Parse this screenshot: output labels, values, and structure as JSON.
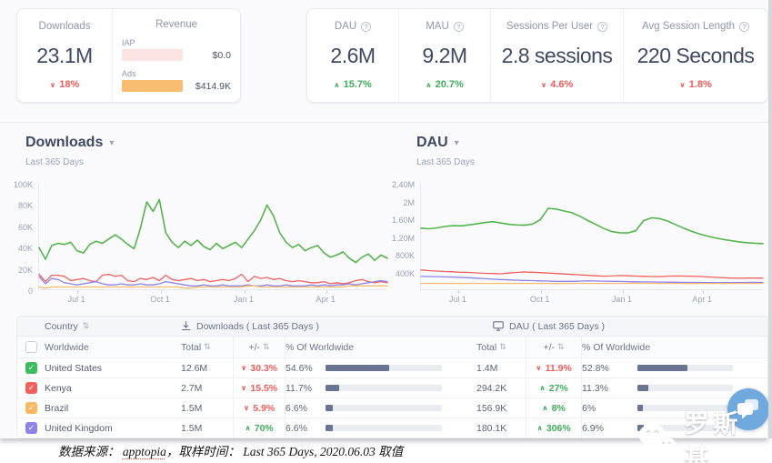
{
  "icons": {
    "help": "?",
    "caret": "▾",
    "sort": "⇅",
    "check": "✓"
  },
  "kpi": {
    "downloads": {
      "label": "Downloads",
      "value": "23.1M",
      "delta": "18%",
      "direction": "down"
    },
    "revenue": {
      "label": "Revenue",
      "iap_label": "IAP",
      "iap_value": "$0.0",
      "ads_label": "Ads",
      "ads_value": "$414.9K"
    },
    "dau": {
      "label": "DAU",
      "value": "2.6M",
      "delta": "15.7%",
      "direction": "up"
    },
    "mau": {
      "label": "MAU",
      "value": "9.2M",
      "delta": "20.7%",
      "direction": "up"
    },
    "sessions_per_user": {
      "label": "Sessions Per User",
      "value": "2.8 sessions",
      "delta": "4.6%",
      "direction": "down"
    },
    "avg_session_length": {
      "label": "Avg Session Length",
      "value": "220 Seconds",
      "delta": "1.8%",
      "direction": "down"
    }
  },
  "chart_data": [
    {
      "type": "line",
      "title": "Downloads",
      "subtitle": "Last 365 Days",
      "values_unit": "thousands of downloads per day",
      "grid": false,
      "legend": "none",
      "ylim": [
        0,
        100
      ],
      "y_ticks": [
        {
          "label": "100K",
          "value": 100
        },
        {
          "label": "80K",
          "value": 80
        },
        {
          "label": "60K",
          "value": 60
        },
        {
          "label": "40K",
          "value": 40
        },
        {
          "label": "20K",
          "value": 20
        },
        {
          "label": "0",
          "value": 0
        }
      ],
      "x_ticks": [
        {
          "label": "Jul 1",
          "pos": 0.11
        },
        {
          "label": "Oct 1",
          "pos": 0.35
        },
        {
          "label": "Jan 1",
          "pos": 0.59
        },
        {
          "label": "Apr 1",
          "pos": 0.825
        }
      ],
      "series": [
        {
          "name": "United States",
          "color": "#55b54d",
          "width": 1.6,
          "values": [
            40,
            29,
            42,
            44,
            43,
            45,
            37,
            35,
            43,
            46,
            44,
            48,
            52,
            48,
            43,
            39,
            58,
            83,
            74,
            85,
            54,
            45,
            40,
            46,
            42,
            47,
            41,
            38,
            44,
            39,
            42,
            45,
            40,
            48,
            56,
            66,
            80,
            70,
            54,
            45,
            40,
            43,
            37,
            40,
            42,
            35,
            31,
            33,
            36,
            30,
            26,
            31,
            34,
            28,
            33,
            30
          ]
        },
        {
          "name": "Kenya",
          "color": "#f0615d",
          "width": 1.3,
          "values": [
            15,
            8,
            14,
            14,
            13,
            9,
            10,
            11,
            9,
            8,
            14,
            15,
            13,
            14,
            9,
            8,
            11,
            10,
            12,
            9,
            14,
            10,
            9,
            10,
            11,
            9,
            10,
            8,
            9,
            10,
            9,
            11,
            15,
            8,
            13,
            11,
            12,
            10,
            11,
            9,
            8,
            9,
            8,
            7,
            7,
            8,
            6,
            7,
            6,
            7,
            9,
            10,
            8,
            7,
            8,
            7
          ]
        },
        {
          "name": "United Kingdom",
          "color": "#8d83ea",
          "width": 1.3,
          "values": [
            13,
            6,
            11,
            10,
            7,
            6,
            5,
            6,
            7,
            8,
            6,
            5,
            5,
            6,
            5,
            5,
            6,
            5,
            5,
            6,
            8,
            7,
            6,
            5,
            4,
            4,
            5,
            4,
            4,
            5,
            4,
            4,
            4,
            5,
            4,
            4,
            5,
            4,
            4,
            5,
            4,
            4,
            4,
            5,
            4,
            5,
            4,
            5,
            5,
            6,
            5,
            6,
            7,
            8,
            9,
            8
          ]
        },
        {
          "name": "Brazil",
          "color": "#f9bd71",
          "width": 1.3,
          "values": [
            3,
            2,
            3,
            3,
            3,
            3,
            3,
            3,
            3,
            3,
            3,
            3,
            3,
            3,
            3,
            3,
            3,
            3,
            3,
            3,
            3,
            3,
            3,
            2,
            2,
            3,
            3,
            3,
            3,
            3,
            3,
            3,
            3,
            4,
            4,
            3,
            3,
            3,
            3,
            3,
            3,
            3,
            3,
            3,
            3,
            3,
            3,
            3,
            3,
            4,
            4,
            4,
            4,
            4,
            4,
            4
          ]
        }
      ]
    },
    {
      "type": "line",
      "title": "DAU",
      "subtitle": "Last 365 Days",
      "values_unit": "thousands of daily active users",
      "grid": false,
      "legend": "none",
      "ylim": [
        0,
        2400
      ],
      "y_ticks": [
        {
          "label": "2.40M",
          "value": 2400
        },
        {
          "label": "2M",
          "value": 2000
        },
        {
          "label": "1.60M",
          "value": 1600
        },
        {
          "label": "1.20M",
          "value": 1200
        },
        {
          "label": "800K",
          "value": 800
        },
        {
          "label": "400K",
          "value": 400
        }
      ],
      "x_ticks": [
        {
          "label": "Jul 1",
          "pos": 0.11
        },
        {
          "label": "Oct 1",
          "pos": 0.35
        },
        {
          "label": "Jan 1",
          "pos": 0.59
        },
        {
          "label": "Apr 1",
          "pos": 0.825
        }
      ],
      "series": [
        {
          "name": "United States",
          "color": "#55b54d",
          "width": 1.6,
          "values": [
            1400,
            1385,
            1405,
            1435,
            1455,
            1450,
            1470,
            1495,
            1525,
            1545,
            1515,
            1485,
            1470,
            1465,
            1490,
            1590,
            1845,
            1830,
            1785,
            1745,
            1665,
            1570,
            1480,
            1390,
            1320,
            1295,
            1290,
            1340,
            1570,
            1630,
            1615,
            1560,
            1480,
            1400,
            1330,
            1270,
            1220,
            1180,
            1145,
            1115,
            1090,
            1070,
            1058,
            1050
          ]
        },
        {
          "name": "Kenya",
          "color": "#f0615d",
          "width": 1.3,
          "values": [
            455,
            440,
            430,
            420,
            415,
            405,
            400,
            390,
            380,
            375,
            370,
            385,
            400,
            410,
            405,
            395,
            385,
            375,
            365,
            355,
            345,
            335,
            325,
            315,
            320,
            330,
            325,
            318,
            312,
            308,
            305,
            315,
            320,
            318,
            315,
            310,
            300,
            290,
            280,
            272,
            268,
            272,
            275,
            270
          ]
        },
        {
          "name": "United Kingdom",
          "color": "#8d83ea",
          "width": 1.3,
          "values": [
            310,
            308,
            305,
            300,
            295,
            288,
            280,
            270,
            258,
            248,
            240,
            232,
            225,
            220,
            215,
            210,
            205,
            200,
            198,
            200,
            205,
            210,
            208,
            204,
            200,
            196,
            192,
            188,
            186,
            184,
            182,
            180,
            178,
            176,
            175,
            174,
            173,
            172,
            172,
            173,
            174,
            175,
            176,
            175
          ]
        },
        {
          "name": "Brazil",
          "color": "#f9bd71",
          "width": 1.3,
          "values": [
            152,
            151,
            152,
            153,
            152,
            151,
            152,
            152,
            151,
            152,
            153,
            152,
            151,
            152,
            153,
            152,
            151,
            150,
            151,
            152,
            153,
            152,
            152,
            151,
            152,
            153,
            154,
            155,
            154,
            153,
            152,
            151,
            152,
            151,
            150,
            151,
            152,
            151,
            150,
            151,
            152,
            153,
            152,
            152
          ]
        }
      ]
    }
  ],
  "table": {
    "headers": {
      "country": "Country",
      "downloads_group": "Downloads ( Last 365 Days )",
      "dau_group": "DAU ( Last 365 Days )",
      "worldwide": "Worldwide",
      "total": "Total",
      "delta": "+/-",
      "pct_of_worldwide": "% Of Worldwide"
    },
    "rows": [
      {
        "country": "United States",
        "color": "#3dbb61",
        "dl_total": "12.6M",
        "dl_delta": "30.3%",
        "dl_dir": "down",
        "dl_pct": "54.6%",
        "dl_pct_val": 54.6,
        "dau_total": "1.4M",
        "dau_delta": "11.9%",
        "dau_dir": "down",
        "dau_pct": "52.8%",
        "dau_pct_val": 52.8
      },
      {
        "country": "Kenya",
        "color": "#f0615d",
        "dl_total": "2.7M",
        "dl_delta": "15.5%",
        "dl_dir": "down",
        "dl_pct": "11.7%",
        "dl_pct_val": 11.7,
        "dau_total": "294.2K",
        "dau_delta": "27%",
        "dau_dir": "up",
        "dau_pct": "11.3%",
        "dau_pct_val": 11.3
      },
      {
        "country": "Brazil",
        "color": "#f8b864",
        "dl_total": "1.5M",
        "dl_delta": "5.9%",
        "dl_dir": "down",
        "dl_pct": "6.6%",
        "dl_pct_val": 6.6,
        "dau_total": "156.9K",
        "dau_delta": "8%",
        "dau_dir": "up",
        "dau_pct": "6%",
        "dau_pct_val": 6
      },
      {
        "country": "United Kingdom",
        "color": "#8d83ea",
        "dl_total": "1.5M",
        "dl_delta": "70%",
        "dl_dir": "up",
        "dl_pct": "6.6%",
        "dl_pct_val": 6.6,
        "dau_total": "180.1K",
        "dau_delta": "306%",
        "dau_dir": "up",
        "dau_pct": "6.9%",
        "dau_pct_val": 6.9
      }
    ]
  },
  "watermark": {
    "text": "罗斯基"
  },
  "footer": {
    "prefix": "数据来源：  ",
    "source": "apptopia",
    "middle": "，取样时间：  ",
    "period": "Last 365 Days, 2020.06.03",
    "suffix": " 取值"
  }
}
